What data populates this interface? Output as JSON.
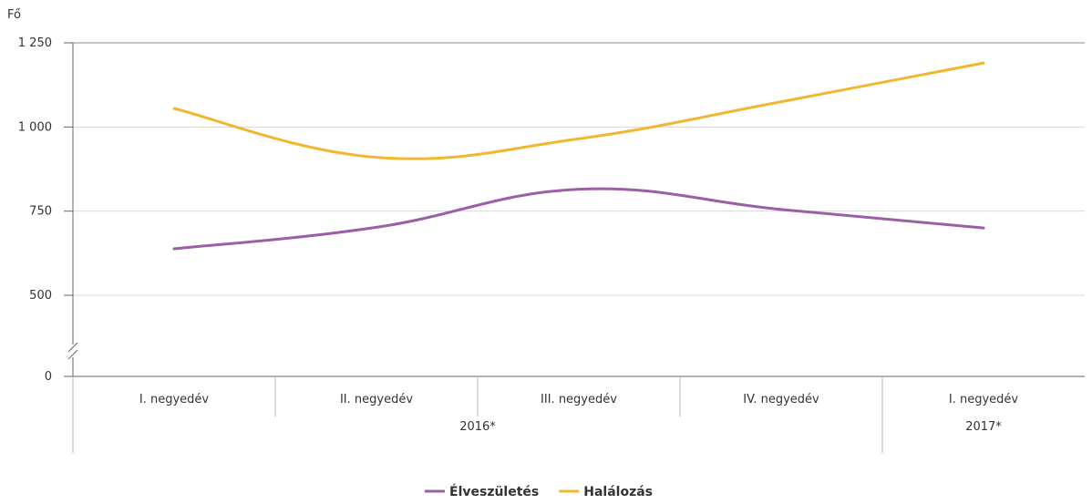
{
  "chart_data": {
    "type": "line",
    "ylabel": "Fő",
    "ylim": [
      0,
      1250
    ],
    "yticks": [
      {
        "value": 0,
        "label": "0"
      },
      {
        "value": 500,
        "label": "500"
      },
      {
        "value": 750,
        "label": "750"
      },
      {
        "value": 1000,
        "label": "1 000"
      },
      {
        "value": 1250,
        "label": "1 250"
      }
    ],
    "axis_break": true,
    "grid": true,
    "categories": [
      "I. negyedév",
      "II. negyedév",
      "III. negyedév",
      "IV. negyedév",
      "I. negyedév"
    ],
    "year_groups": [
      {
        "label": "2016*",
        "span": 4
      },
      {
        "label": "2017*",
        "span": 1
      }
    ],
    "series": [
      {
        "name": "Élveszületés",
        "color": "#9b5fa6",
        "values": [
          638,
          702,
          815,
          755,
          700
        ]
      },
      {
        "name": "Halálozás",
        "color": "#f2b731",
        "values": [
          1055,
          910,
          965,
          1075,
          1190
        ]
      }
    ],
    "legend": "bottom-center"
  }
}
